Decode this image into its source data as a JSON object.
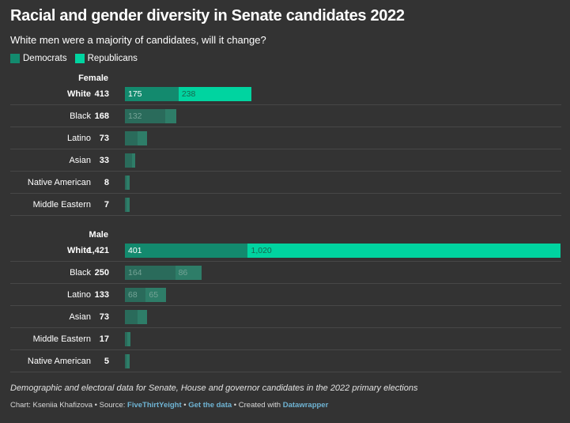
{
  "title": "Racial and gender diversity in Senate candidates 2022",
  "subtitle": "White men were a majority of candidates, will it change?",
  "legend": [
    {
      "label": "Democrats",
      "color": "#138a6e"
    },
    {
      "label": "Republicans",
      "color": "#00d4a0"
    }
  ],
  "chart_data": {
    "type": "bar",
    "stacked": true,
    "orientation": "horizontal",
    "series_names": [
      "Democrats",
      "Republicans"
    ],
    "colors": {
      "Democrats": "#138a6e",
      "Republicans": "#00d4a0",
      "Democrats_muted": "#2a6b5b",
      "Republicans_muted": "#2e7d68"
    },
    "groups": [
      {
        "label": "Female",
        "rows": [
          {
            "label": "White",
            "total": "413",
            "dem": 175,
            "rep": 238,
            "dem_label": "175",
            "rep_label": "238",
            "highlight": true
          },
          {
            "label": "Black",
            "total": "168",
            "dem": 132,
            "rep": 36,
            "dem_label": "132",
            "rep_label": "",
            "highlight": false
          },
          {
            "label": "Latino",
            "total": "73",
            "dem": 40,
            "rep": 33,
            "dem_label": "",
            "rep_label": "",
            "highlight": false
          },
          {
            "label": "Asian",
            "total": "33",
            "dem": 22,
            "rep": 11,
            "dem_label": "",
            "rep_label": "",
            "highlight": false
          },
          {
            "label": "Native American",
            "total": "8",
            "dem": 6,
            "rep": 2,
            "dem_label": "",
            "rep_label": "",
            "highlight": false
          },
          {
            "label": "Middle Eastern",
            "total": "7",
            "dem": 5,
            "rep": 2,
            "dem_label": "",
            "rep_label": "",
            "highlight": false
          }
        ]
      },
      {
        "label": "Male",
        "rows": [
          {
            "label": "White",
            "total": "1,421",
            "dem": 401,
            "rep": 1020,
            "dem_label": "401",
            "rep_label": "1,020",
            "highlight": true
          },
          {
            "label": "Black",
            "total": "250",
            "dem": 164,
            "rep": 86,
            "dem_label": "164",
            "rep_label": "86",
            "highlight": false
          },
          {
            "label": "Latino",
            "total": "133",
            "dem": 68,
            "rep": 65,
            "dem_label": "68",
            "rep_label": "65",
            "highlight": false
          },
          {
            "label": "Asian",
            "total": "73",
            "dem": 42,
            "rep": 31,
            "dem_label": "",
            "rep_label": "",
            "highlight": false
          },
          {
            "label": "Middle Eastern",
            "total": "17",
            "dem": 8,
            "rep": 9,
            "dem_label": "",
            "rep_label": "",
            "highlight": false
          },
          {
            "label": "Native American",
            "total": "5",
            "dem": 3,
            "rep": 2,
            "dem_label": "",
            "rep_label": "",
            "highlight": false
          }
        ]
      }
    ],
    "xlim": [
      0,
      1421
    ]
  },
  "footer": {
    "note": "Demographic and electoral data for Senate, House and governor candidates in the 2022 primary elections",
    "credit_prefix": "Chart: Kseniia Khafizova • Source: ",
    "source_link": "FiveThirtYeight",
    "sep": " • ",
    "data_link": "Get the data",
    "created_prefix": " • Created with ",
    "tool_link": "Datawrapper"
  }
}
